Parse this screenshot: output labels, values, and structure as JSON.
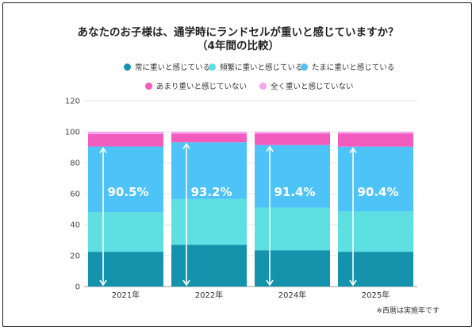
{
  "title_line1": "あなたのお子様は、通学時にランドセルが重いと感じていますか？",
  "title_line2": "（4年間の比較）",
  "legend": [
    {
      "label": "常に重いと感じている",
      "color": "#1593ad"
    },
    {
      "label": "頻繁に重いと感じている",
      "color": "#5ee0e3"
    },
    {
      "label": "たまに重いと感じている",
      "color": "#4ec3f7"
    },
    {
      "label": "あまり重いと感じていない",
      "color": "#f25cbd"
    },
    {
      "label": "全く重いと感じていない",
      "color": "#f7a3f0"
    }
  ],
  "note": "※西暦は実施年です",
  "chart_data": {
    "type": "bar",
    "stacked": true,
    "categories": [
      "2021年",
      "2022年",
      "2024年",
      "2025年"
    ],
    "series": [
      {
        "name": "常に重いと感じている",
        "color": "#1593ad",
        "values": [
          22.5,
          27.0,
          23.5,
          22.5
        ]
      },
      {
        "name": "頻繁に重いと感じている",
        "color": "#5ee0e3",
        "values": [
          25.5,
          29.5,
          27.5,
          26.0
        ]
      },
      {
        "name": "たまに重いと感じている",
        "color": "#4ec3f7",
        "values": [
          42.5,
          36.7,
          40.4,
          41.9
        ]
      },
      {
        "name": "あまり重いと感じていない",
        "color": "#f25cbd",
        "values": [
          8.0,
          5.5,
          7.5,
          8.5
        ]
      },
      {
        "name": "全く重いと感じていない",
        "color": "#f7a3f0",
        "values": [
          1.5,
          1.3,
          1.1,
          1.1
        ]
      }
    ],
    "annotations": [
      "90.5%",
      "93.2%",
      "91.4%",
      "90.4%"
    ],
    "annotation_values": [
      90.5,
      93.2,
      91.4,
      90.4
    ],
    "ylim": [
      0,
      120
    ],
    "yticks": [
      0,
      20,
      40,
      60,
      80,
      100,
      120
    ],
    "grid": true
  }
}
